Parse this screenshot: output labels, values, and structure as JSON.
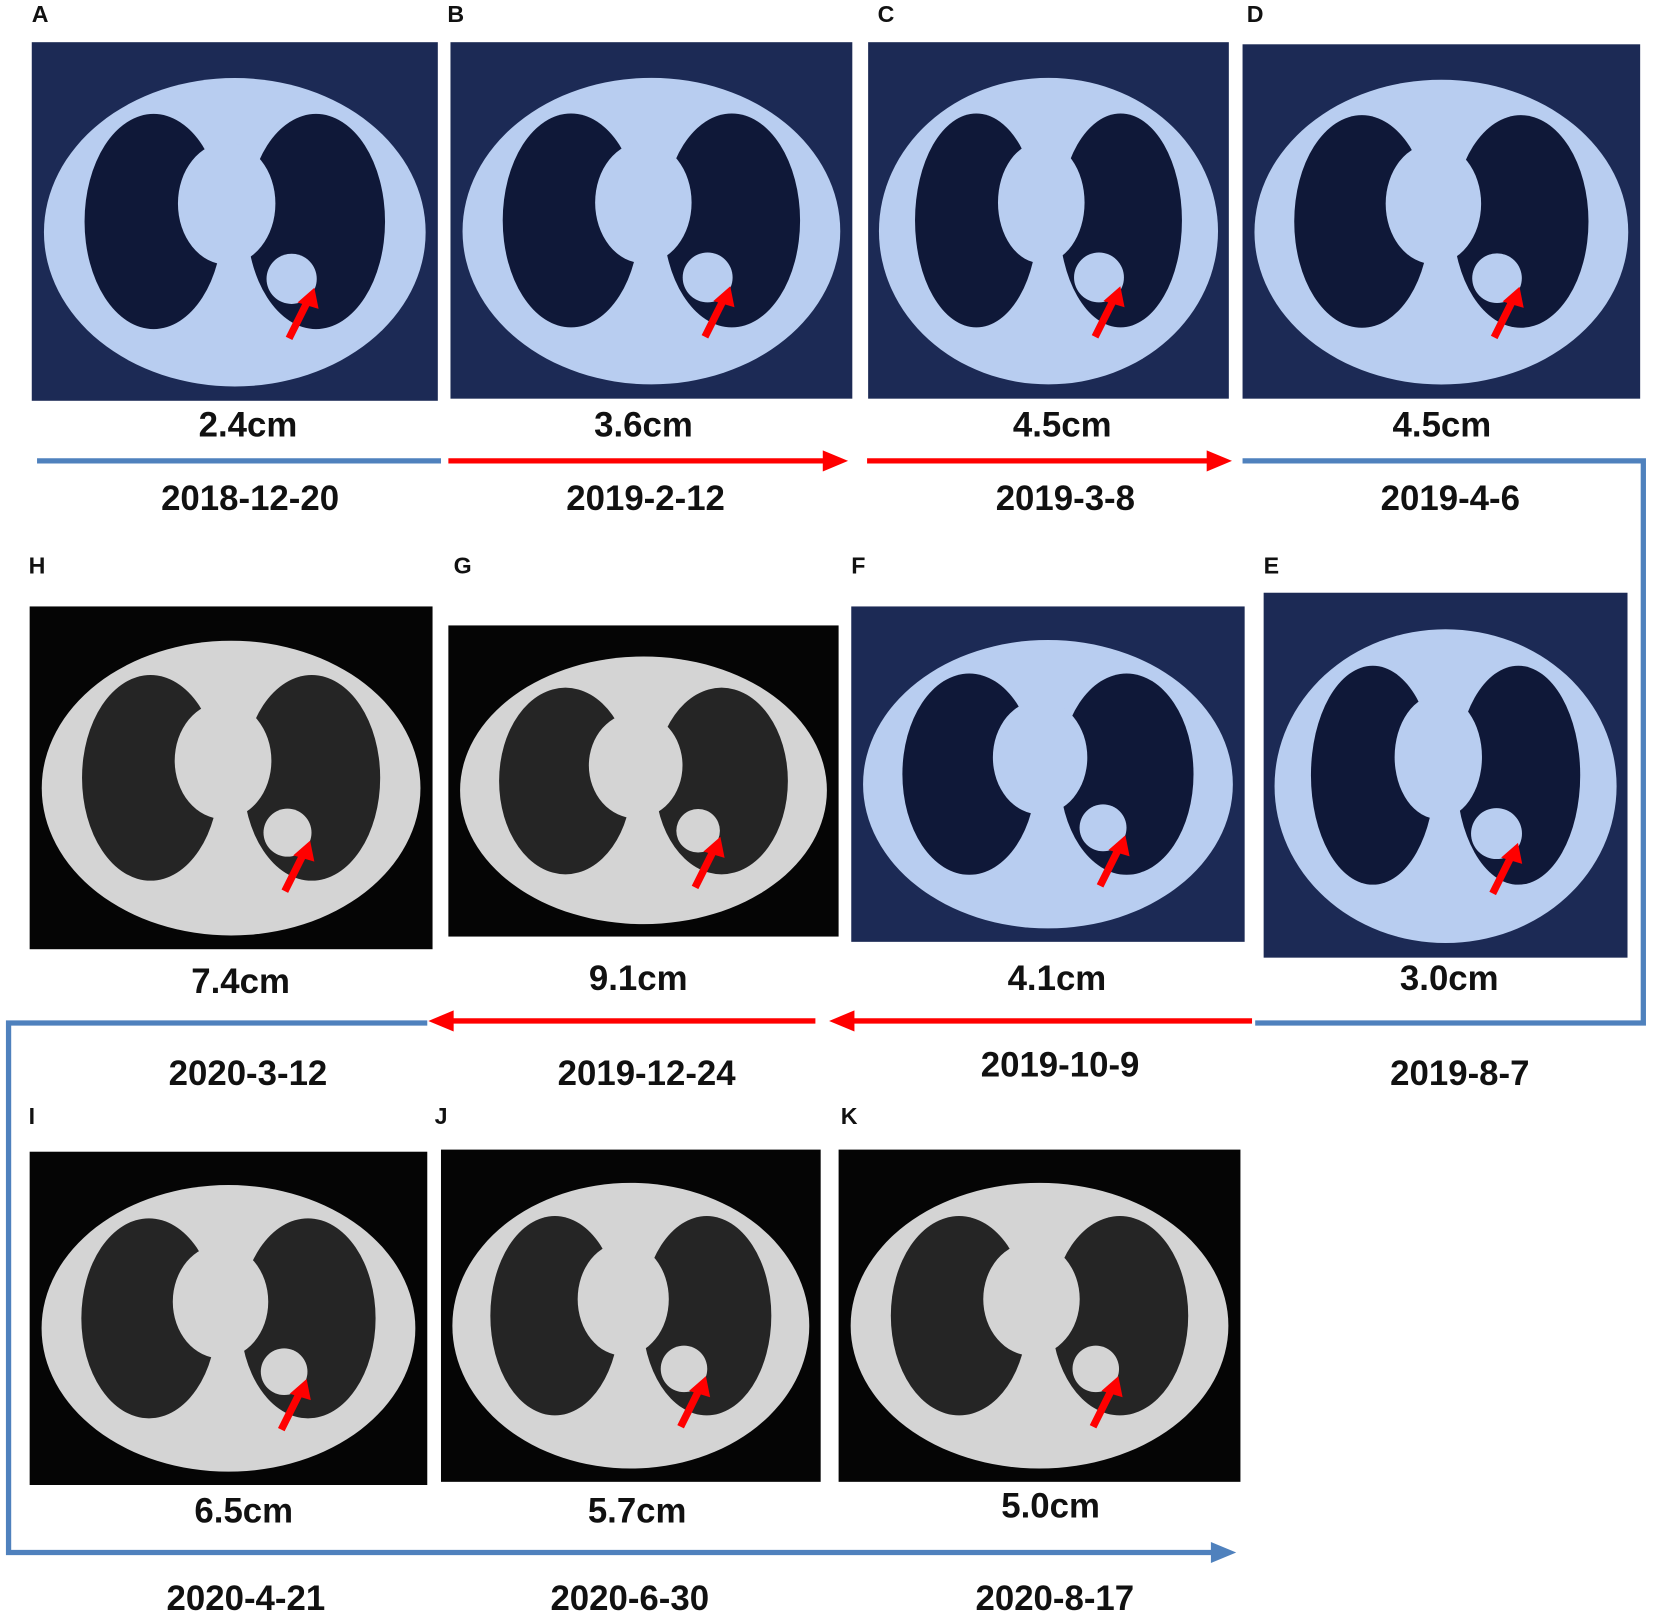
{
  "panels": [
    {
      "label": "A",
      "size": "2.4cm",
      "date": "2018-12-20"
    },
    {
      "label": "B",
      "size": "3.6cm",
      "date": "2019-2-12"
    },
    {
      "label": "C",
      "size": "4.5cm",
      "date": "2019-3-8"
    },
    {
      "label": "D",
      "size": "4.5cm",
      "date": "2019-4-6"
    },
    {
      "label": "E",
      "size": "3.0cm",
      "date": "2019-8-7"
    },
    {
      "label": "F",
      "size": "4.1cm",
      "date": "2019-10-9"
    },
    {
      "label": "G",
      "size": "9.1cm",
      "date": "2019-12-24"
    },
    {
      "label": "H",
      "size": "7.4cm",
      "date": "2020-3-12"
    },
    {
      "label": "I",
      "size": "6.5cm",
      "date": "2020-4-21"
    },
    {
      "label": "J",
      "size": "5.7cm",
      "date": "2020-6-30"
    },
    {
      "label": "K",
      "size": "5.0cm",
      "date": "2020-8-17"
    }
  ]
}
